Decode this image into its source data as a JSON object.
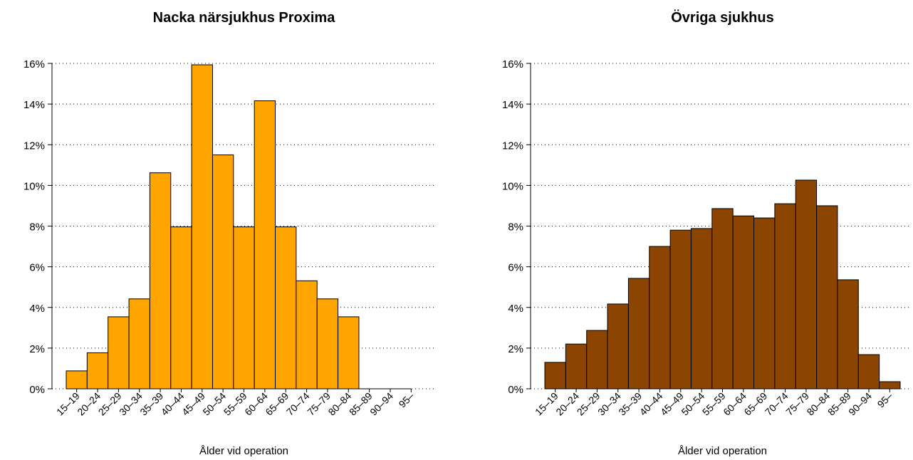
{
  "chart_data": [
    {
      "type": "bar",
      "title": "Nacka närsjukhus Proxima",
      "x_label": "Ålder vid operation",
      "color": "#ffa500",
      "categories": [
        "15–19",
        "20–24",
        "25–29",
        "30–34",
        "35–39",
        "40–44",
        "45–49",
        "50–54",
        "55–59",
        "60–64",
        "65–69",
        "70–74",
        "75–79",
        "80–84",
        "85–89",
        "90–94",
        "95–"
      ],
      "values": [
        0.88,
        1.77,
        3.54,
        4.42,
        10.62,
        7.96,
        15.93,
        11.5,
        7.96,
        14.16,
        7.96,
        5.31,
        4.42,
        3.54,
        0,
        0,
        0
      ],
      "ylim": [
        0,
        16
      ],
      "yticks": [
        {
          "value": 0,
          "label": "0%"
        },
        {
          "value": 2,
          "label": "2%"
        },
        {
          "value": 4,
          "label": "4%"
        },
        {
          "value": 6,
          "label": "6%"
        },
        {
          "value": 8,
          "label": "8%"
        },
        {
          "value": 10,
          "label": "10%"
        },
        {
          "value": 12,
          "label": "12%"
        },
        {
          "value": 14,
          "label": "14%"
        },
        {
          "value": 16,
          "label": "16%"
        }
      ],
      "grid": true
    },
    {
      "type": "bar",
      "title": "Övriga sjukhus",
      "x_label": "Ålder vid operation",
      "color": "#8b4500",
      "categories": [
        "15–19",
        "20–24",
        "25–29",
        "30–34",
        "35–39",
        "40–44",
        "45–49",
        "50–54",
        "55–59",
        "60–64",
        "65–69",
        "70–74",
        "75–79",
        "80–84",
        "85–89",
        "90–94",
        "95–"
      ],
      "values": [
        1.3,
        2.2,
        2.87,
        4.17,
        5.43,
        7.0,
        7.8,
        7.88,
        8.86,
        8.5,
        8.4,
        9.1,
        10.26,
        9.0,
        5.36,
        1.68,
        0.35
      ],
      "ylim": [
        0,
        16
      ],
      "yticks": [
        {
          "value": 0,
          "label": "0%"
        },
        {
          "value": 2,
          "label": "2%"
        },
        {
          "value": 4,
          "label": "4%"
        },
        {
          "value": 6,
          "label": "6%"
        },
        {
          "value": 8,
          "label": "8%"
        },
        {
          "value": 10,
          "label": "10%"
        },
        {
          "value": 12,
          "label": "12%"
        },
        {
          "value": 14,
          "label": "14%"
        },
        {
          "value": 16,
          "label": "16%"
        }
      ],
      "grid": true
    }
  ]
}
